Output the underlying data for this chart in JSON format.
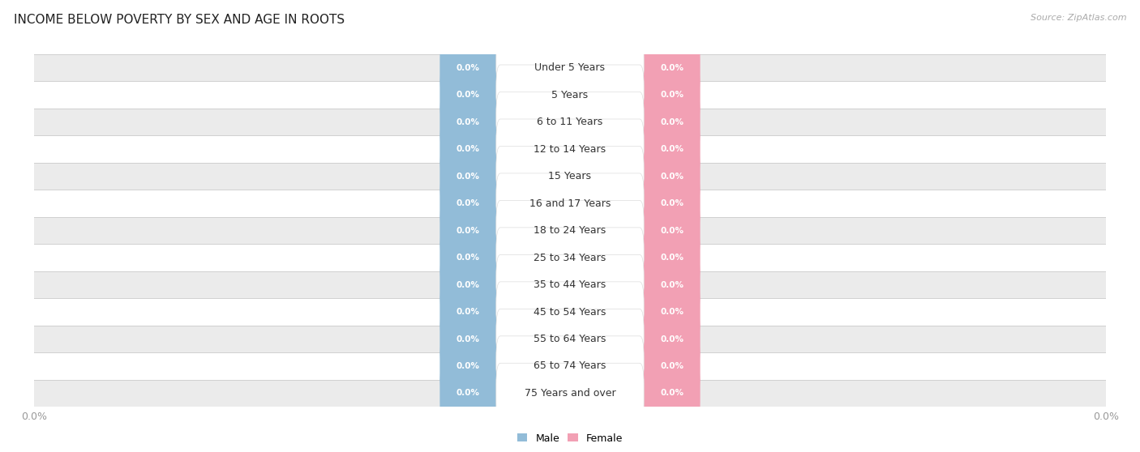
{
  "title": "INCOME BELOW POVERTY BY SEX AND AGE IN ROOTS",
  "source": "Source: ZipAtlas.com",
  "categories": [
    "Under 5 Years",
    "5 Years",
    "6 to 11 Years",
    "12 to 14 Years",
    "15 Years",
    "16 and 17 Years",
    "18 to 24 Years",
    "25 to 34 Years",
    "35 to 44 Years",
    "45 to 54 Years",
    "55 to 64 Years",
    "65 to 74 Years",
    "75 Years and over"
  ],
  "male_values": [
    0.0,
    0.0,
    0.0,
    0.0,
    0.0,
    0.0,
    0.0,
    0.0,
    0.0,
    0.0,
    0.0,
    0.0,
    0.0
  ],
  "female_values": [
    0.0,
    0.0,
    0.0,
    0.0,
    0.0,
    0.0,
    0.0,
    0.0,
    0.0,
    0.0,
    0.0,
    0.0,
    0.0
  ],
  "male_color": "#92bcd8",
  "female_color": "#f2a0b4",
  "male_label": "Male",
  "female_label": "Female",
  "male_text_color": "#ffffff",
  "female_text_color": "#ffffff",
  "background_color": "#ffffff",
  "row_bg_color_odd": "#ebebeb",
  "row_bg_color_even": "#ffffff",
  "title_fontsize": 11,
  "label_fontsize": 9,
  "tick_fontsize": 9,
  "axis_label_color": "#999999",
  "category_fontsize": 9
}
